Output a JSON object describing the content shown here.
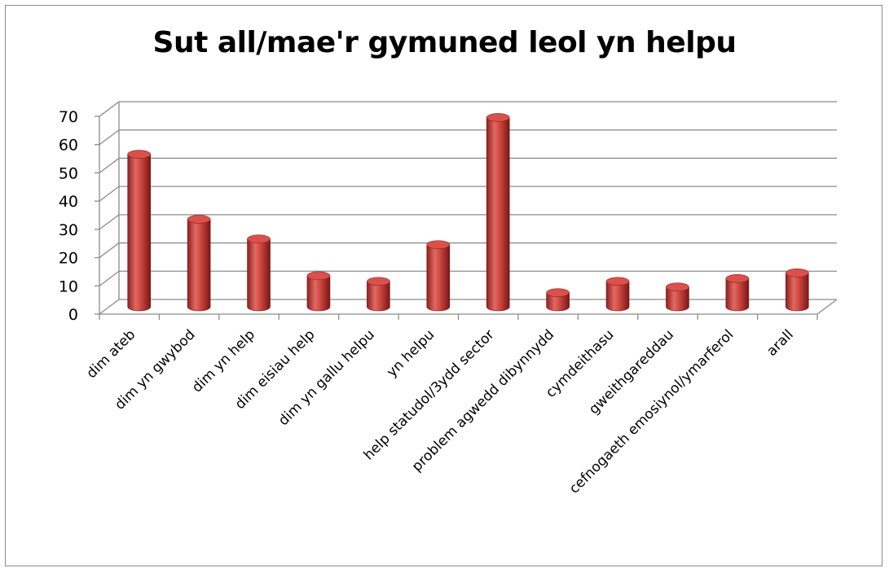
{
  "chart_data": {
    "type": "bar",
    "title": "Sut all/mae'r gymuned leol yn helpu",
    "xlabel": "",
    "ylabel": "",
    "ylim": [
      0,
      70
    ],
    "yticks": [
      0,
      10,
      20,
      30,
      40,
      50,
      60,
      70
    ],
    "grid": true,
    "legend": "none",
    "style": "3d-cylinder",
    "bar_color": "#c0392b",
    "categories": [
      "dim ateb",
      "dim yn gwybod",
      "dim yn help",
      "dim eisiau help",
      "dim yn gallu helpu",
      "yn helpu",
      "help statudol/3ydd sector",
      "problem agwedd dibynnydd",
      "cymdeithasu",
      "gweithgareddau",
      "cefnogaeth emosiynol/ymarferol",
      "arall"
    ],
    "values": [
      54,
      31,
      24,
      11,
      9,
      22,
      67,
      5,
      9,
      7,
      10,
      12
    ]
  }
}
